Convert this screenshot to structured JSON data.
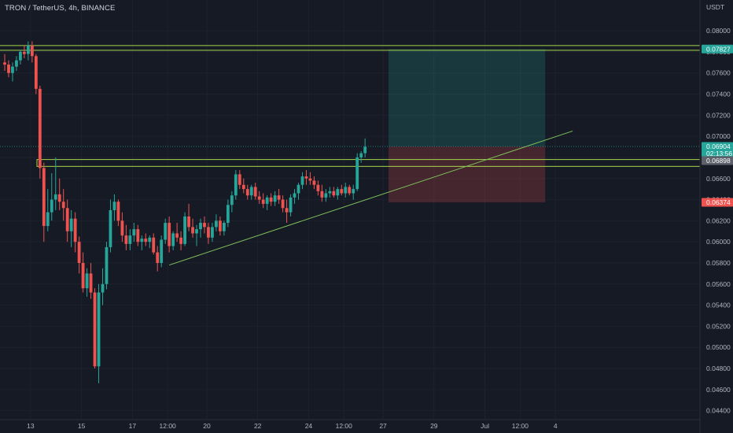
{
  "header": {
    "title": "TRON / TetherUS, 4h, BINANCE"
  },
  "colors": {
    "background": "#161a25",
    "grid": "#1e222d",
    "up": "#26a69a",
    "down": "#ef5350",
    "level_line": "#a5d64a",
    "trendline": "#7ec05a",
    "target_zone": "rgba(38,166,154,0.22)",
    "stop_zone": "rgba(239,83,80,0.22)",
    "text": "#b2b5be"
  },
  "chart_data": {
    "type": "candlestick",
    "symbol": "TRON / TetherUS",
    "interval": "4h",
    "exchange": "BINANCE",
    "y_axis_label": "USDT",
    "ylim": [
      0.0436,
      0.0815
    ],
    "y_ticks": [
      "0.08000",
      "0.07800",
      "0.07600",
      "0.07400",
      "0.07200",
      "0.07000",
      "0.06800",
      "0.06600",
      "0.06400",
      "0.06200",
      "0.06000",
      "0.05800",
      "0.05600",
      "0.05400",
      "0.05200",
      "0.05000",
      "0.04800",
      "0.04600",
      "0.04400"
    ],
    "x_ticks": [
      {
        "label": "13",
        "bar": 7
      },
      {
        "label": "15",
        "bar": 20
      },
      {
        "label": "17",
        "bar": 33
      },
      {
        "label": "12:00",
        "bar": 42
      },
      {
        "label": "20",
        "bar": 52
      },
      {
        "label": "22",
        "bar": 65
      },
      {
        "label": "24",
        "bar": 78
      },
      {
        "label": "12:00",
        "bar": 87
      },
      {
        "label": "27",
        "bar": 97
      },
      {
        "label": "29",
        "bar": 110
      },
      {
        "label": "Jul",
        "bar": 123
      },
      {
        "label": "12:00",
        "bar": 132
      },
      {
        "label": "4",
        "bar": 141
      }
    ],
    "candles": [
      [
        0.077,
        0.0778,
        0.0762,
        0.0768
      ],
      [
        0.0768,
        0.0772,
        0.0756,
        0.076
      ],
      [
        0.076,
        0.077,
        0.0752,
        0.0766
      ],
      [
        0.0766,
        0.0776,
        0.0762,
        0.0772
      ],
      [
        0.0772,
        0.0782,
        0.0768,
        0.078
      ],
      [
        0.078,
        0.0786,
        0.0774,
        0.0778
      ],
      [
        0.0778,
        0.079,
        0.0772,
        0.0786
      ],
      [
        0.0786,
        0.079,
        0.077,
        0.0776
      ],
      [
        0.0776,
        0.0778,
        0.074,
        0.0745
      ],
      [
        0.0745,
        0.0748,
        0.066,
        0.067
      ],
      [
        0.067,
        0.0675,
        0.06,
        0.0615
      ],
      [
        0.0615,
        0.065,
        0.061,
        0.0628
      ],
      [
        0.0628,
        0.0665,
        0.062,
        0.064
      ],
      [
        0.064,
        0.068,
        0.063,
        0.0645
      ],
      [
        0.0645,
        0.066,
        0.063,
        0.0638
      ],
      [
        0.0638,
        0.065,
        0.062,
        0.0632
      ],
      [
        0.0632,
        0.064,
        0.06,
        0.061
      ],
      [
        0.061,
        0.063,
        0.0595,
        0.0622
      ],
      [
        0.0622,
        0.0628,
        0.059,
        0.06
      ],
      [
        0.06,
        0.0605,
        0.057,
        0.058
      ],
      [
        0.058,
        0.059,
        0.0552,
        0.0556
      ],
      [
        0.0556,
        0.0575,
        0.0548,
        0.057
      ],
      [
        0.057,
        0.058,
        0.0546,
        0.0552
      ],
      [
        0.0552,
        0.0556,
        0.048,
        0.0482
      ],
      [
        0.0482,
        0.056,
        0.0466,
        0.0552
      ],
      [
        0.0552,
        0.0575,
        0.054,
        0.056
      ],
      [
        0.056,
        0.06,
        0.0555,
        0.0595
      ],
      [
        0.0595,
        0.064,
        0.059,
        0.063
      ],
      [
        0.063,
        0.0645,
        0.062,
        0.0638
      ],
      [
        0.0638,
        0.064,
        0.0615,
        0.062
      ],
      [
        0.062,
        0.0628,
        0.06,
        0.0606
      ],
      [
        0.0606,
        0.0616,
        0.0592,
        0.0598
      ],
      [
        0.0598,
        0.0612,
        0.0592,
        0.0606
      ],
      [
        0.0606,
        0.0618,
        0.06,
        0.0612
      ],
      [
        0.0612,
        0.0616,
        0.0596,
        0.06
      ],
      [
        0.06,
        0.0606,
        0.0592,
        0.0603
      ],
      [
        0.0603,
        0.0608,
        0.0596,
        0.06
      ],
      [
        0.06,
        0.0606,
        0.0594,
        0.0604
      ],
      [
        0.0604,
        0.0608,
        0.0588,
        0.059
      ],
      [
        0.059,
        0.0596,
        0.0572,
        0.058
      ],
      [
        0.058,
        0.0606,
        0.0576,
        0.0602
      ],
      [
        0.0602,
        0.0622,
        0.0598,
        0.0618
      ],
      [
        0.0618,
        0.0624,
        0.059,
        0.0596
      ],
      [
        0.0596,
        0.061,
        0.0592,
        0.0608
      ],
      [
        0.0608,
        0.0618,
        0.06,
        0.0604
      ],
      [
        0.0604,
        0.061,
        0.0592,
        0.0598
      ],
      [
        0.0598,
        0.0628,
        0.0596,
        0.0624
      ],
      [
        0.0624,
        0.0636,
        0.061,
        0.0614
      ],
      [
        0.0614,
        0.0622,
        0.0604,
        0.0608
      ],
      [
        0.0608,
        0.0616,
        0.0596,
        0.0612
      ],
      [
        0.0612,
        0.0622,
        0.0604,
        0.0618
      ],
      [
        0.0618,
        0.0624,
        0.0608,
        0.0614
      ],
      [
        0.0614,
        0.0618,
        0.0598,
        0.0604
      ],
      [
        0.0604,
        0.0618,
        0.06,
        0.0614
      ],
      [
        0.0614,
        0.0626,
        0.061,
        0.062
      ],
      [
        0.062,
        0.0624,
        0.0606,
        0.061
      ],
      [
        0.061,
        0.062,
        0.0606,
        0.0618
      ],
      [
        0.0618,
        0.064,
        0.0614,
        0.0635
      ],
      [
        0.0635,
        0.0648,
        0.0628,
        0.0644
      ],
      [
        0.0644,
        0.0668,
        0.064,
        0.0664
      ],
      [
        0.0664,
        0.0668,
        0.065,
        0.0654
      ],
      [
        0.0654,
        0.066,
        0.0646,
        0.065
      ],
      [
        0.065,
        0.0654,
        0.064,
        0.0644
      ],
      [
        0.0644,
        0.0654,
        0.064,
        0.0652
      ],
      [
        0.0652,
        0.0656,
        0.064,
        0.0643
      ],
      [
        0.0643,
        0.0648,
        0.0636,
        0.064
      ],
      [
        0.064,
        0.0646,
        0.0632,
        0.0636
      ],
      [
        0.0636,
        0.0644,
        0.063,
        0.0642
      ],
      [
        0.0642,
        0.0646,
        0.0634,
        0.0638
      ],
      [
        0.0638,
        0.0648,
        0.0634,
        0.0644
      ],
      [
        0.0644,
        0.065,
        0.0636,
        0.064
      ],
      [
        0.064,
        0.0644,
        0.0628,
        0.0632
      ],
      [
        0.0632,
        0.064,
        0.0618,
        0.0628
      ],
      [
        0.0628,
        0.0645,
        0.0624,
        0.0642
      ],
      [
        0.0642,
        0.065,
        0.0636,
        0.0646
      ],
      [
        0.0646,
        0.0656,
        0.064,
        0.0654
      ],
      [
        0.0654,
        0.0666,
        0.065,
        0.0662
      ],
      [
        0.0662,
        0.0668,
        0.0654,
        0.066
      ],
      [
        0.066,
        0.0666,
        0.0654,
        0.0658
      ],
      [
        0.0658,
        0.0662,
        0.065,
        0.0654
      ],
      [
        0.0654,
        0.0658,
        0.0644,
        0.0648
      ],
      [
        0.0648,
        0.0654,
        0.0638,
        0.0642
      ],
      [
        0.0642,
        0.065,
        0.0638,
        0.0646
      ],
      [
        0.0646,
        0.0652,
        0.0642,
        0.0648
      ],
      [
        0.0648,
        0.0652,
        0.0642,
        0.0644
      ],
      [
        0.0644,
        0.0652,
        0.064,
        0.065
      ],
      [
        0.065,
        0.0654,
        0.0644,
        0.0646
      ],
      [
        0.0646,
        0.0656,
        0.0642,
        0.0652
      ],
      [
        0.0652,
        0.0654,
        0.0644,
        0.0646
      ],
      [
        0.0646,
        0.0654,
        0.064,
        0.065
      ],
      [
        0.065,
        0.0684,
        0.0648,
        0.068
      ],
      [
        0.068,
        0.0686,
        0.0675,
        0.0684
      ],
      [
        0.0684,
        0.0698,
        0.068,
        0.069
      ]
    ],
    "horizontal_levels": [
      {
        "price": 0.0786,
        "style": "line"
      },
      {
        "price": 0.07815,
        "style": "line"
      },
      {
        "price_top": 0.0678,
        "price_bottom": 0.06715,
        "style": "band"
      }
    ],
    "trendline": {
      "from": {
        "bar": 42,
        "price": 0.0578
      },
      "to": {
        "bar": 145,
        "price": 0.0705
      }
    },
    "position": {
      "start_bar": 98,
      "end_bar": 138,
      "target_price": 0.07827,
      "entry_price": 0.06904,
      "stop_price": 0.06374
    },
    "price_tags": [
      {
        "label": "0.07827",
        "price": 0.07827,
        "color": "#26a69a"
      },
      {
        "label": "0.06904",
        "sub": "02:13:56",
        "price": 0.06904,
        "color": "#26a69a"
      },
      {
        "label": "0.06898",
        "price": 0.0677,
        "color": "#5d606b"
      },
      {
        "label": "0.06374",
        "price": 0.06374,
        "color": "#ef5350"
      }
    ]
  }
}
